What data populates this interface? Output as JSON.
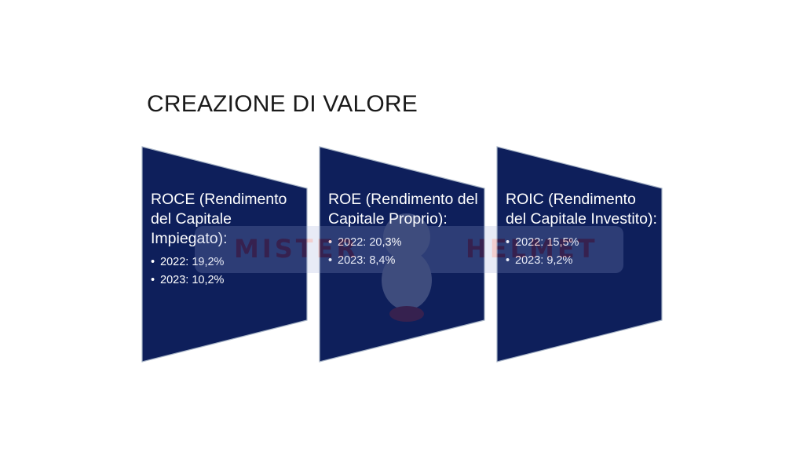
{
  "slide": {
    "title": "CREAZIONE DI VALORE"
  },
  "watermark": {
    "word_left": "MISTER",
    "word_right": "HELMET"
  },
  "cards": [
    {
      "heading": "ROCE (Rendimento del Capitale Impiegato):",
      "items": [
        "2022: 19,2%",
        "2023: 10,2%"
      ]
    },
    {
      "heading": "ROE (Rendimento del Capitale Proprio):",
      "items": [
        "2022: 20,3%",
        "2023: 8,4%"
      ]
    },
    {
      "heading": "ROIC (Rendimento del Capitale Investito):",
      "items": [
        "2022: 15,5%",
        "2023: 9,2%"
      ]
    }
  ],
  "colors": {
    "card_fill": "#0e1f5b",
    "card_border": "#a6b3c6",
    "text_on_card": "#ffffff",
    "title_text": "#1a1a1a"
  }
}
